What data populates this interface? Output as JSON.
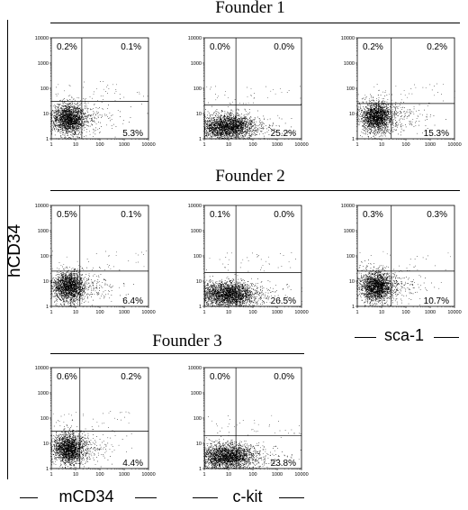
{
  "founders": [
    {
      "title": "Founder 1"
    },
    {
      "title": "Founder 2"
    },
    {
      "title": "Founder 3"
    }
  ],
  "y_axis_label": "hCD34",
  "x_axis_labels": {
    "col1": "mCD34",
    "col2": "c-kit",
    "col3": "sca-1"
  },
  "chart_data": [
    {
      "type": "scatter",
      "founder": "Founder 1",
      "x_marker": "mCD34",
      "y_marker": "hCD34",
      "xscale": "log",
      "yscale": "log",
      "xlim": [
        1,
        10000
      ],
      "ylim": [
        1,
        10000
      ],
      "x_ticks": [
        "1",
        "10",
        "100",
        "1000",
        "10000"
      ],
      "y_ticks": [
        "1",
        "10",
        "100",
        "1000",
        "10000"
      ],
      "quadrants": {
        "upper_left": "0.2%",
        "upper_right": "0.1%",
        "lower_right": "5.3%"
      },
      "gate": {
        "x": 18,
        "y": 30
      },
      "cluster": {
        "x": 5,
        "y": 6
      }
    },
    {
      "type": "scatter",
      "founder": "Founder 1",
      "x_marker": "c-kit",
      "y_marker": "hCD34",
      "xscale": "log",
      "yscale": "log",
      "xlim": [
        1,
        10000
      ],
      "ylim": [
        1,
        10000
      ],
      "x_ticks": [
        "1",
        "10",
        "100",
        "1000",
        "10000"
      ],
      "y_ticks": [
        "1",
        "10",
        "100",
        "1000",
        "10000"
      ],
      "quadrants": {
        "upper_left": "0.0%",
        "upper_right": "0.0%",
        "lower_right": "25.2%"
      },
      "gate": {
        "x": 20,
        "y": 22
      },
      "cluster": {
        "x": 8,
        "y": 3
      }
    },
    {
      "type": "scatter",
      "founder": "Founder 1",
      "x_marker": "sca-1",
      "y_marker": "hCD34",
      "xscale": "log",
      "yscale": "log",
      "xlim": [
        1,
        10000
      ],
      "ylim": [
        1,
        10000
      ],
      "x_ticks": [
        "1",
        "10",
        "100",
        "1000",
        "10000"
      ],
      "y_ticks": [
        "1",
        "10",
        "100",
        "1000",
        "10000"
      ],
      "quadrants": {
        "upper_left": "0.2%",
        "upper_right": "0.2%",
        "lower_right": "15.3%"
      },
      "gate": {
        "x": 25,
        "y": 25
      },
      "cluster": {
        "x": 6,
        "y": 7
      }
    },
    {
      "type": "scatter",
      "founder": "Founder 2",
      "x_marker": "mCD34",
      "y_marker": "hCD34",
      "xscale": "log",
      "yscale": "log",
      "xlim": [
        1,
        10000
      ],
      "ylim": [
        1,
        10000
      ],
      "x_ticks": [
        "1",
        "10",
        "100",
        "1000",
        "10000"
      ],
      "y_ticks": [
        "1",
        "10",
        "100",
        "1000",
        "10000"
      ],
      "quadrants": {
        "upper_left": "0.5%",
        "upper_right": "0.1%",
        "lower_right": "6.4%"
      },
      "gate": {
        "x": 15,
        "y": 25
      },
      "cluster": {
        "x": 5,
        "y": 6
      }
    },
    {
      "type": "scatter",
      "founder": "Founder 2",
      "x_marker": "c-kit",
      "y_marker": "hCD34",
      "xscale": "log",
      "yscale": "log",
      "xlim": [
        1,
        10000
      ],
      "ylim": [
        1,
        10000
      ],
      "x_ticks": [
        "1",
        "10",
        "100",
        "1000",
        "10000"
      ],
      "y_ticks": [
        "1",
        "10",
        "100",
        "1000",
        "10000"
      ],
      "quadrants": {
        "upper_left": "0.1%",
        "upper_right": "0.0%",
        "lower_right": "26.5%"
      },
      "gate": {
        "x": 20,
        "y": 22
      },
      "cluster": {
        "x": 8,
        "y": 3
      }
    },
    {
      "type": "scatter",
      "founder": "Founder 2",
      "x_marker": "sca-1",
      "y_marker": "hCD34",
      "xscale": "log",
      "yscale": "log",
      "xlim": [
        1,
        10000
      ],
      "ylim": [
        1,
        10000
      ],
      "x_ticks": [
        "1",
        "10",
        "100",
        "1000",
        "10000"
      ],
      "y_ticks": [
        "1",
        "10",
        "100",
        "1000",
        "10000"
      ],
      "quadrants": {
        "upper_left": "0.3%",
        "upper_right": "0.3%",
        "lower_right": "10.7%"
      },
      "gate": {
        "x": 25,
        "y": 25
      },
      "cluster": {
        "x": 6,
        "y": 6
      }
    },
    {
      "type": "scatter",
      "founder": "Founder 3",
      "x_marker": "mCD34",
      "y_marker": "hCD34",
      "xscale": "log",
      "yscale": "log",
      "xlim": [
        1,
        10000
      ],
      "ylim": [
        1,
        10000
      ],
      "x_ticks": [
        "1",
        "10",
        "100",
        "1000",
        "10000"
      ],
      "y_ticks": [
        "1",
        "10",
        "100",
        "1000",
        "10000"
      ],
      "quadrants": {
        "upper_left": "0.6%",
        "upper_right": "0.2%",
        "lower_right": "4.4%"
      },
      "gate": {
        "x": 15,
        "y": 30
      },
      "cluster": {
        "x": 5,
        "y": 6
      }
    },
    {
      "type": "scatter",
      "founder": "Founder 3",
      "x_marker": "c-kit",
      "y_marker": "hCD34",
      "xscale": "log",
      "yscale": "log",
      "xlim": [
        1,
        10000
      ],
      "ylim": [
        1,
        10000
      ],
      "x_ticks": [
        "1",
        "10",
        "100",
        "1000",
        "10000"
      ],
      "y_ticks": [
        "1",
        "10",
        "100",
        "1000",
        "10000"
      ],
      "quadrants": {
        "upper_left": "0.0%",
        "upper_right": "0.0%",
        "lower_right": "23.8%"
      },
      "gate": {
        "x": 20,
        "y": 20
      },
      "cluster": {
        "x": 8,
        "y": 3
      }
    }
  ]
}
